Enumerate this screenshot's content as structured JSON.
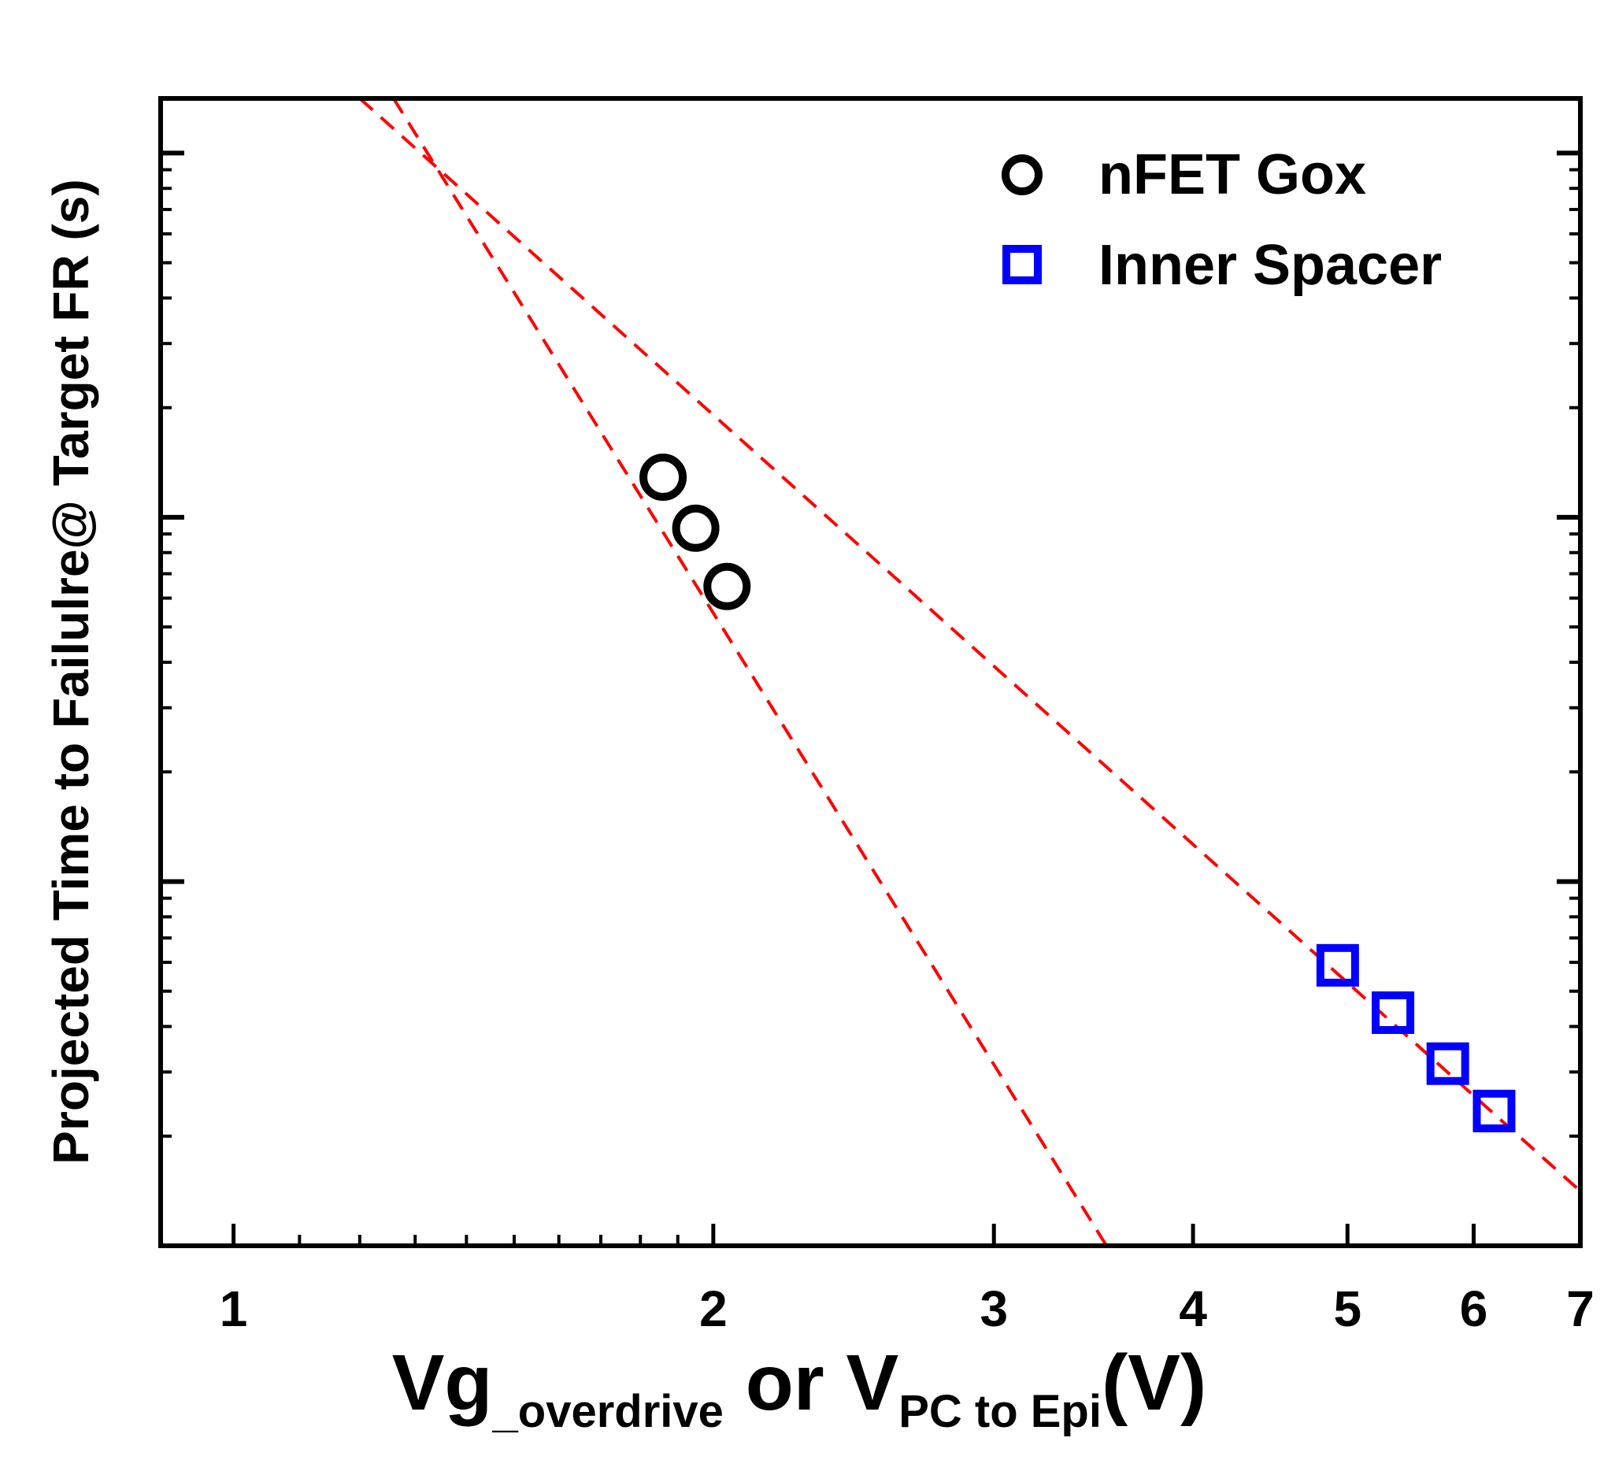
{
  "chart_data": {
    "type": "scatter",
    "title": "",
    "xlabel": {
      "main1": "Vg",
      "sub1": "_overdrive",
      "mid": " or V",
      "sub2": "PC to Epi",
      "end": "(V)"
    },
    "ylabel": "Projected Time to Failulre@ Target FR (s)",
    "x_scale": "log",
    "y_scale": "log",
    "xlim": [
      0.9,
      7.0
    ],
    "ylim_decades": [
      0,
      3.15
    ],
    "xticks": [
      {
        "value": 1,
        "label": "1"
      },
      {
        "value": 2,
        "label": "2"
      },
      {
        "value": 3,
        "label": "3"
      },
      {
        "value": 4,
        "label": "4"
      },
      {
        "value": 5,
        "label": "5"
      },
      {
        "value": 6,
        "label": "6"
      },
      {
        "value": 7,
        "label": "7"
      }
    ],
    "ytick_labels_visible": false,
    "legend_position": "top-right",
    "series": [
      {
        "name": "nFET Gox",
        "marker": "circle",
        "color": "#000000",
        "x": [
          1.86,
          1.95,
          2.04
        ],
        "y_decades": [
          2.11,
          1.97,
          1.81
        ]
      },
      {
        "name": "Inner Spacer",
        "marker": "square",
        "color": "#0000ff",
        "x": [
          4.93,
          5.34,
          5.78,
          6.18
        ],
        "y_decades": [
          0.77,
          0.64,
          0.5,
          0.37
        ]
      }
    ],
    "fit_lines": [
      {
        "name": "nFET Gox fit",
        "color": "#ff0000",
        "style": "dashed",
        "x": [
          1.26,
          3.53
        ],
        "y_decades": [
          3.15,
          0.0
        ]
      },
      {
        "name": "Inner Spacer fit",
        "color": "#ff0000",
        "style": "dashed",
        "x": [
          1.2,
          7.0
        ],
        "y_decades": [
          3.15,
          0.15
        ]
      }
    ]
  }
}
